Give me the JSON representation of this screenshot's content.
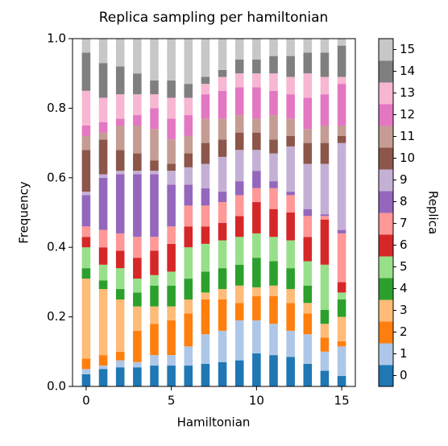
{
  "chart_data": {
    "type": "stacked_bar",
    "title": "Replica sampling per hamiltonian",
    "x_label": "Hamiltonian",
    "y_label": "Frequency",
    "colorbar_label": "Replica",
    "x": [
      0,
      1,
      2,
      3,
      4,
      5,
      6,
      7,
      8,
      9,
      10,
      11,
      12,
      13,
      14,
      15
    ],
    "xlim": [
      -0.8,
      15.8
    ],
    "xticks": [
      0,
      5,
      10,
      15
    ],
    "ylim": [
      0,
      1
    ],
    "yticks": [
      {
        "value": 0,
        "label": "0.0"
      },
      0.2,
      0.4,
      0.6,
      0.8,
      {
        "value": 1,
        "label": "1.0"
      }
    ],
    "series": [
      {
        "name": "0",
        "color": "#1f77b4",
        "values": [
          0.035,
          0.05,
          0.055,
          0.055,
          0.06,
          0.06,
          0.06,
          0.065,
          0.07,
          0.075,
          0.095,
          0.09,
          0.085,
          0.065,
          0.045,
          0.03
        ]
      },
      {
        "name": "1",
        "color": "#aec7e8",
        "values": [
          0.015,
          0.01,
          0.02,
          0.015,
          0.03,
          0.03,
          0.055,
          0.085,
          0.09,
          0.115,
          0.095,
          0.09,
          0.075,
          0.085,
          0.055,
          0.085
        ]
      },
      {
        "name": "2",
        "color": "#ff7f0e",
        "values": [
          0.03,
          0.03,
          0.025,
          0.09,
          0.09,
          0.1,
          0.095,
          0.1,
          0.09,
          0.05,
          0.07,
          0.08,
          0.08,
          0.06,
          0.04,
          0.015
        ]
      },
      {
        "name": "3",
        "color": "#ffbb78",
        "values": [
          0.23,
          0.19,
          0.15,
          0.07,
          0.05,
          0.04,
          0.04,
          0.02,
          0.03,
          0.05,
          0.025,
          0.03,
          0.04,
          0.03,
          0.04,
          0.07
        ]
      },
      {
        "name": "4",
        "color": "#2ca02c",
        "values": [
          0.03,
          0.025,
          0.03,
          0.04,
          0.06,
          0.06,
          0.06,
          0.06,
          0.06,
          0.06,
          0.085,
          0.07,
          0.06,
          0.05,
          0.04,
          0.05
        ]
      },
      {
        "name": "5",
        "color": "#98df8a",
        "values": [
          0.06,
          0.045,
          0.06,
          0.04,
          0.03,
          0.04,
          0.09,
          0.08,
          0.08,
          0.08,
          0.07,
          0.07,
          0.08,
          0.07,
          0.13,
          0.02
        ]
      },
      {
        "name": "6",
        "color": "#d62728",
        "values": [
          0.03,
          0.05,
          0.05,
          0.06,
          0.07,
          0.08,
          0.06,
          0.05,
          0.05,
          0.06,
          0.09,
          0.08,
          0.08,
          0.07,
          0.13,
          0.03
        ]
      },
      {
        "name": "7",
        "color": "#ff9896",
        "values": [
          0.03,
          0.05,
          0.05,
          0.06,
          0.04,
          0.05,
          0.06,
          0.06,
          0.06,
          0.06,
          0.04,
          0.06,
          0.05,
          0.06,
          0.01,
          0.14
        ]
      },
      {
        "name": "8",
        "color": "#9467bd",
        "values": [
          0.09,
          0.15,
          0.17,
          0.18,
          0.18,
          0.12,
          0.06,
          0.05,
          0.03,
          0.04,
          0.05,
          0.02,
          0.01,
          0.02,
          0.005,
          0.01
        ]
      },
      {
        "name": "9",
        "color": "#c5b0d5",
        "values": [
          0.01,
          0.01,
          0.01,
          0.01,
          0.01,
          0.04,
          0.05,
          0.07,
          0.1,
          0.09,
          0.06,
          0.08,
          0.13,
          0.13,
          0.145,
          0.25
        ]
      },
      {
        "name": "10",
        "color": "#8c564b",
        "values": [
          0.12,
          0.1,
          0.06,
          0.05,
          0.03,
          0.02,
          0.04,
          0.06,
          0.05,
          0.05,
          0.05,
          0.04,
          0.03,
          0.06,
          0.06,
          0.02
        ]
      },
      {
        "name": "11",
        "color": "#c49c94",
        "values": [
          0.04,
          0.02,
          0.07,
          0.08,
          0.09,
          0.07,
          0.05,
          0.07,
          0.06,
          0.05,
          0.04,
          0.07,
          0.05,
          0.04,
          0.05,
          0.03
        ]
      },
      {
        "name": "12",
        "color": "#e377c2",
        "values": [
          0.03,
          0.03,
          0.02,
          0.03,
          0.06,
          0.06,
          0.06,
          0.07,
          0.08,
          0.08,
          0.09,
          0.07,
          0.07,
          0.09,
          0.09,
          0.12
        ]
      },
      {
        "name": "13",
        "color": "#f7b6d2",
        "values": [
          0.1,
          0.07,
          0.07,
          0.06,
          0.04,
          0.06,
          0.05,
          0.03,
          0.04,
          0.04,
          0.04,
          0.05,
          0.05,
          0.07,
          0.05,
          0.02
        ]
      },
      {
        "name": "14",
        "color": "#7f7f7f",
        "values": [
          0.11,
          0.1,
          0.08,
          0.06,
          0.04,
          0.05,
          0.04,
          0.02,
          0.02,
          0.04,
          0.04,
          0.05,
          0.06,
          0.06,
          0.07,
          0.09
        ]
      },
      {
        "name": "15",
        "color": "#c7c7c7",
        "values": [
          0.04,
          0.07,
          0.08,
          0.1,
          0.12,
          0.12,
          0.13,
          0.11,
          0.09,
          0.06,
          0.06,
          0.05,
          0.05,
          0.04,
          0.04,
          0.02
        ]
      }
    ]
  }
}
